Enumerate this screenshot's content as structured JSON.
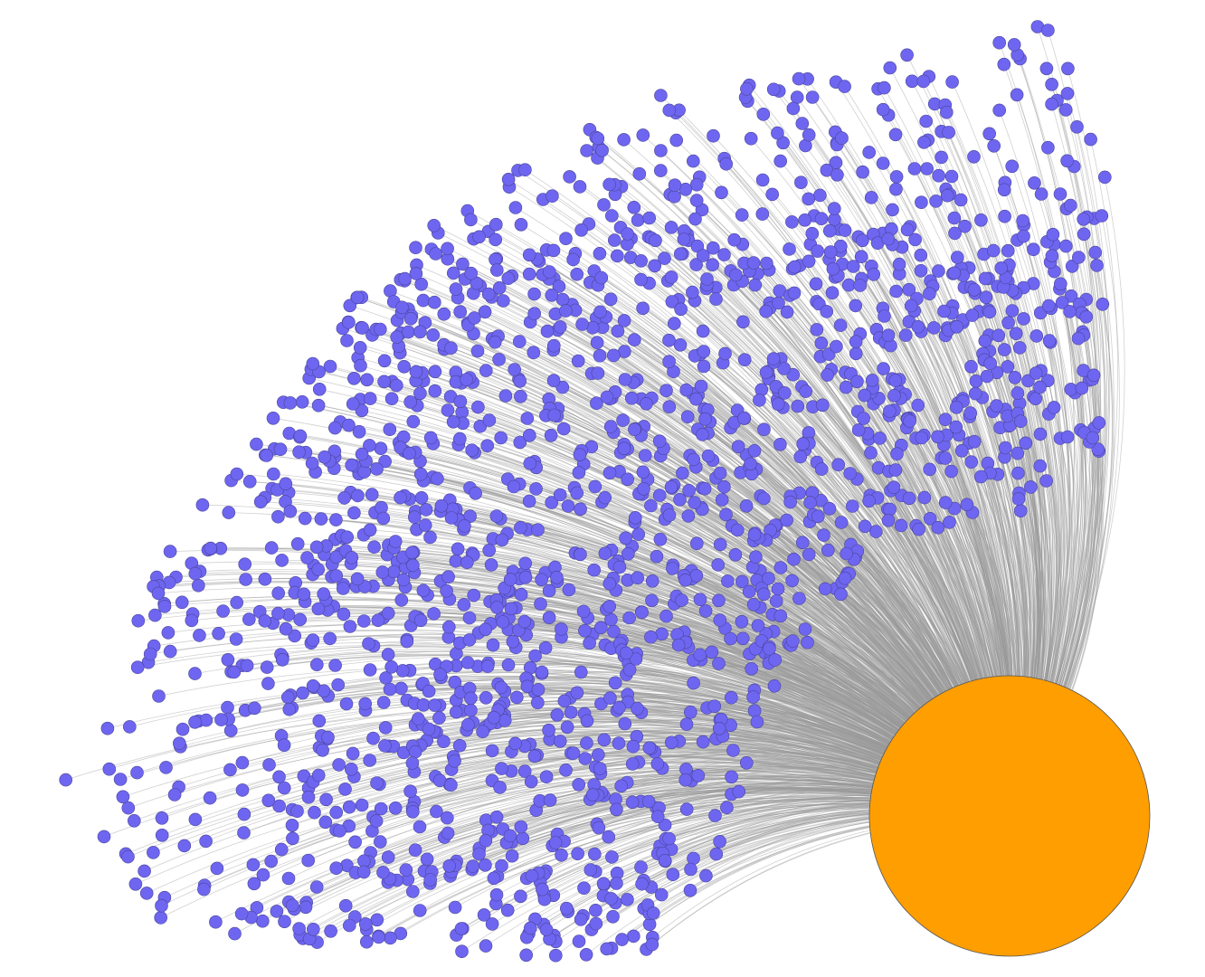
{
  "graph": {
    "type": "star-network",
    "hub": {
      "role": "central node",
      "color": "#FF9E00",
      "stroke": "#555555",
      "degree": 1900
    },
    "leaves": {
      "count": 1900,
      "color": "#6E66F0",
      "stroke": "#4A4599"
    },
    "edge_color": "#9A9A9A",
    "background": "#FFFFFF"
  }
}
